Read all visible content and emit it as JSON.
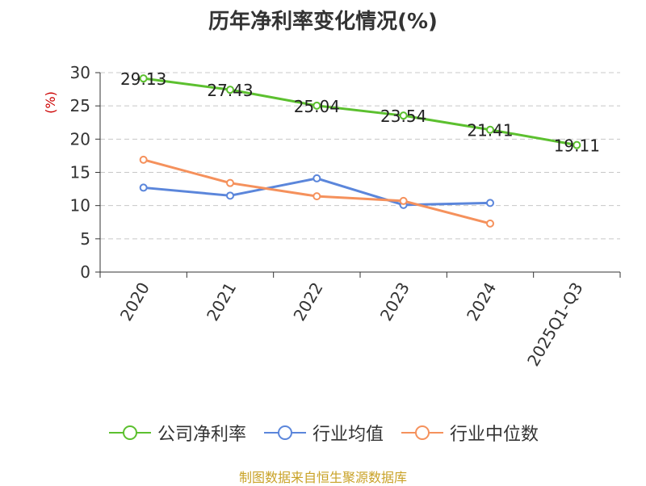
{
  "chart_data": {
    "type": "line",
    "title": "历年净利率变化情况(%)",
    "ylabel": "(%)",
    "xlabel": "",
    "categories": [
      "2020",
      "2021",
      "2022",
      "2023",
      "2024",
      "2025Q1-Q3"
    ],
    "ylim": [
      0,
      30
    ],
    "yticks": [
      0,
      5,
      10,
      15,
      20,
      25,
      30
    ],
    "grid": true,
    "legend_position": "bottom",
    "series": [
      {
        "name": "公司净利率",
        "color": "#5cc02f",
        "values": [
          29.13,
          27.43,
          25.04,
          23.54,
          21.41,
          19.11
        ],
        "labels": [
          "29.13",
          "27.43",
          "25.04",
          "23.54",
          "21.41",
          "19.11"
        ]
      },
      {
        "name": "行业均值",
        "color": "#5b86db",
        "values": [
          12.7,
          11.5,
          14.1,
          10.1,
          10.4,
          null
        ],
        "labels": []
      },
      {
        "name": "行业中位数",
        "color": "#f5915c",
        "values": [
          16.9,
          13.4,
          11.4,
          10.7,
          7.3,
          null
        ],
        "labels": []
      }
    ]
  },
  "footer": {
    "source": "制图数据来自恒生聚源数据库"
  }
}
